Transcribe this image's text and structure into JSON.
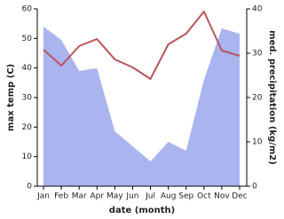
{
  "chart_data": {
    "type": "combo",
    "x_label": "date (month)",
    "y_label": "max temp (C)",
    "y2_label": "med. precipitation (kg/m2)",
    "categories": [
      "Jan",
      "Feb",
      "Mar",
      "Apr",
      "May",
      "Jun",
      "Jul",
      "Aug",
      "Sep",
      "Oct",
      "Nov",
      "Dec"
    ],
    "series": [
      {
        "type": "area",
        "axis": "y2",
        "color": "#aab4ef",
        "values": [
          36,
          33,
          26,
          26.6,
          12.4,
          9,
          5.6,
          10,
          8,
          24,
          35.6,
          34.4
        ]
      },
      {
        "type": "line",
        "color": "#b9545a",
        "values": [
          46.2,
          40.8,
          47.4,
          49.8,
          42.9,
          40.2,
          36.3,
          48,
          51.6,
          59.1,
          45.9,
          44.1
        ]
      }
    ],
    "ylim": [
      0,
      60
    ],
    "yticks": [
      0,
      10,
      20,
      30,
      40,
      50,
      60
    ],
    "y2lim": [
      0,
      40
    ],
    "y2ticks": [
      0,
      10,
      20,
      30,
      40
    ]
  }
}
